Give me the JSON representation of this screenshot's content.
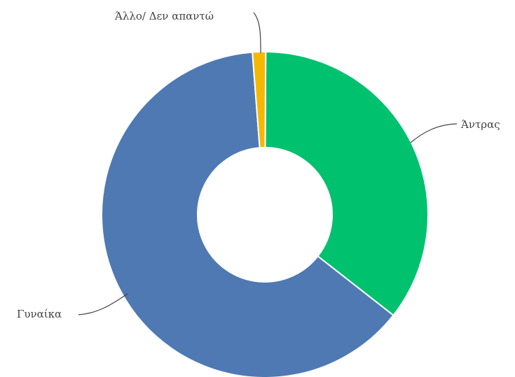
{
  "chart_data": {
    "type": "pie",
    "subtype": "doughnut",
    "title": "",
    "legend": "none",
    "categories": [
      "Άντρας",
      "Γυναίκα",
      "Άλλο/ Δεν απαντώ"
    ],
    "values": [
      35.5,
      63.2,
      1.3
    ],
    "colors": [
      "#00c16e",
      "#4e79b3",
      "#f5b800"
    ]
  },
  "labels": {
    "men": "Άντρας",
    "women": "Γυναίκα",
    "other": "Άλλο/ Δεν απαντώ"
  }
}
